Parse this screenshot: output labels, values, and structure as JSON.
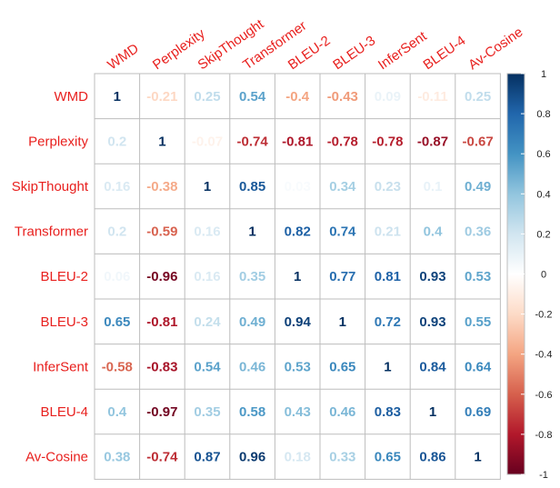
{
  "chart_data": {
    "type": "heatmap",
    "title": "",
    "xlabel": "",
    "ylabel": "",
    "row_labels": [
      "WMD",
      "Perplexity",
      "SkipThought",
      "Transformer",
      "BLEU-2",
      "BLEU-3",
      "InferSent",
      "BLEU-4",
      "Av-Cosine"
    ],
    "col_labels": [
      "WMD",
      "Perplexity",
      "SkipThought",
      "Transformer",
      "BLEU-2",
      "BLEU-3",
      "InferSent",
      "BLEU-4",
      "Av-Cosine"
    ],
    "values": [
      [
        1,
        -0.21,
        0.25,
        0.54,
        -0.4,
        -0.43,
        0.09,
        -0.11,
        0.25
      ],
      [
        0.2,
        1,
        -0.07,
        -0.74,
        -0.81,
        -0.78,
        -0.78,
        -0.87,
        -0.67
      ],
      [
        0.16,
        -0.38,
        1,
        0.85,
        0.03,
        0.34,
        0.23,
        0.1,
        0.49
      ],
      [
        0.2,
        -0.59,
        0.16,
        1,
        0.82,
        0.74,
        0.21,
        0.4,
        0.36
      ],
      [
        0.06,
        -0.96,
        0.16,
        0.35,
        1,
        0.77,
        0.81,
        0.93,
        0.53
      ],
      [
        0.65,
        -0.81,
        0.24,
        0.49,
        0.94,
        1,
        0.72,
        0.93,
        0.55
      ],
      [
        -0.58,
        -0.83,
        0.54,
        0.46,
        0.53,
        0.65,
        1,
        0.84,
        0.64
      ],
      [
        0.4,
        -0.97,
        0.35,
        0.58,
        0.43,
        0.46,
        0.83,
        1,
        0.69
      ],
      [
        0.38,
        -0.74,
        0.87,
        0.96,
        0.18,
        0.33,
        0.65,
        0.86,
        1
      ]
    ],
    "value_labels": [
      [
        "1",
        "-0.21",
        "0.25",
        "0.54",
        "-0.4",
        "-0.43",
        "0.09",
        "-0.11",
        "0.25"
      ],
      [
        "0.2",
        "1",
        "-0.07",
        "-0.74",
        "-0.81",
        "-0.78",
        "-0.78",
        "-0.87",
        "-0.67"
      ],
      [
        "0.16",
        "-0.38",
        "1",
        "0.85",
        "0.03",
        "0.34",
        "0.23",
        "0.1",
        "0.49"
      ],
      [
        "0.2",
        "-0.59",
        "0.16",
        "1",
        "0.82",
        "0.74",
        "0.21",
        "0.4",
        "0.36"
      ],
      [
        "0.06",
        "-0.96",
        "0.16",
        "0.35",
        "1",
        "0.77",
        "0.81",
        "0.93",
        "0.53"
      ],
      [
        "0.65",
        "-0.81",
        "0.24",
        "0.49",
        "0.94",
        "1",
        "0.72",
        "0.93",
        "0.55"
      ],
      [
        "-0.58",
        "-0.83",
        "0.54",
        "0.46",
        "0.53",
        "0.65",
        "1",
        "0.84",
        "0.64"
      ],
      [
        "0.4",
        "-0.97",
        "0.35",
        "0.58",
        "0.43",
        "0.46",
        "0.83",
        "1",
        "0.69"
      ],
      [
        "0.38",
        "-0.74",
        "0.87",
        "0.96",
        "0.18",
        "0.33",
        "0.65",
        "0.86",
        "1"
      ]
    ],
    "colorbar": {
      "range": [
        -1,
        1
      ],
      "ticks": [
        "1",
        "0.8",
        "0.6",
        "0.4",
        "0.2",
        "0",
        "-0.2",
        "-0.4",
        "-0.6",
        "-0.8",
        "-1"
      ],
      "tick_values": [
        1,
        0.8,
        0.6,
        0.4,
        0.2,
        0,
        -0.2,
        -0.4,
        -0.6,
        -0.8,
        -1
      ],
      "colors_low_to_high": [
        "#67001f",
        "#b2182b",
        "#d6604d",
        "#f4a582",
        "#fddbc7",
        "#ffffff",
        "#d1e5f0",
        "#92c5de",
        "#4393c3",
        "#2166ac",
        "#053061"
      ],
      "placement": "right"
    },
    "label_color": "#e8201e",
    "grid": true
  }
}
